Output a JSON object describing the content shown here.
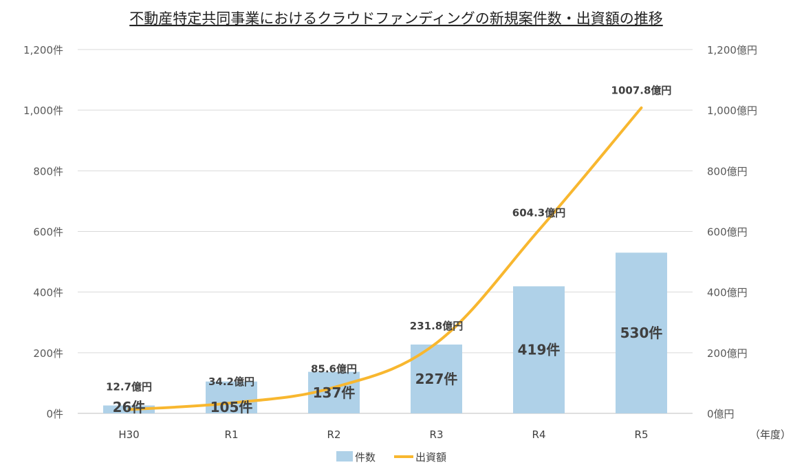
{
  "chart_data": {
    "type": "bar",
    "title": "不動産特定共同事業におけるクラウドファンディングの新規案件数・出資額の推移",
    "categories": [
      "H30",
      "R1",
      "R2",
      "R3",
      "R4",
      "R5"
    ],
    "x_unit_note": "（年度）",
    "left_axis": {
      "ylim": [
        0,
        1200
      ],
      "ticks": [
        0,
        200,
        400,
        600,
        800,
        1000,
        1200
      ],
      "tick_labels": [
        "0件",
        "200件",
        "400件",
        "600件",
        "800件",
        "1,000件",
        "1,200件"
      ]
    },
    "right_axis": {
      "ylim": [
        0,
        1200
      ],
      "ticks": [
        0,
        200,
        400,
        600,
        800,
        1000,
        1200
      ],
      "tick_labels": [
        "0億円",
        "200億円",
        "400億円",
        "600億円",
        "800億円",
        "1,000億円",
        "1,200億円"
      ]
    },
    "series": [
      {
        "name": "件数",
        "type": "bar",
        "axis": "left",
        "color": "#afd1e8",
        "values": [
          26,
          105,
          137,
          227,
          419,
          530
        ],
        "labels": [
          "26件",
          "105件",
          "137件",
          "227件",
          "419件",
          "530件"
        ]
      },
      {
        "name": "出資額",
        "type": "line",
        "axis": "right",
        "color": "#f8b72f",
        "values": [
          12.7,
          34.2,
          85.6,
          231.8,
          604.3,
          1007.8
        ],
        "labels": [
          "12.7億円",
          "34.2億円",
          "85.6億円",
          "231.8億円",
          "604.3億円",
          "1007.8億円"
        ]
      }
    ],
    "grid": true,
    "legend": "bottom-center"
  }
}
